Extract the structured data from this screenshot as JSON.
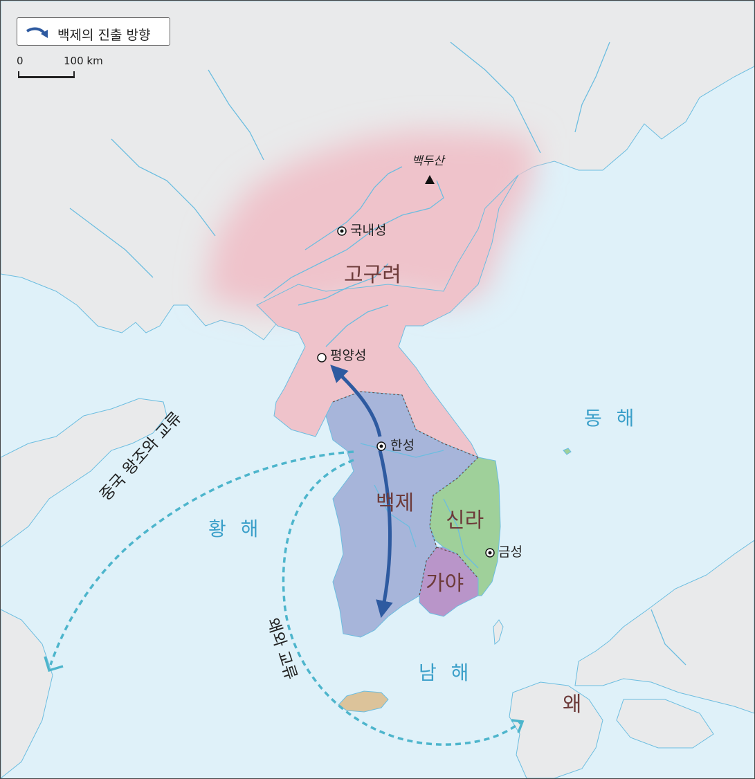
{
  "legend": {
    "icon": "curved-arrow-icon",
    "label": "백제의 진출 방향"
  },
  "scale": {
    "zero": "0",
    "max": "100 km"
  },
  "colors": {
    "sea": "#dff1f9",
    "land": "#e9eaeb",
    "goguryeo": "#efc3cb",
    "baekje": "#a7b5da",
    "silla": "#9fd09a",
    "gaya": "#b995c9",
    "jeju": "#dcc39a",
    "river": "#6bbde0",
    "route": "#4db5cc",
    "arrow": "#2e5aa0"
  },
  "kingdoms": {
    "goguryeo": "고구려",
    "baekje": "백제",
    "silla": "신라",
    "gaya": "가야",
    "wa": "왜"
  },
  "seas": {
    "east": "동 해",
    "yellow": "황 해",
    "south": "남 해"
  },
  "cities": {
    "gungnae": "국내성",
    "pyongyang": "평양성",
    "hanseong": "한성",
    "geumseong": "금성"
  },
  "mountain": "백두산",
  "routes": {
    "china": "중국 왕조와 교류",
    "wa": "왜와 교류"
  }
}
